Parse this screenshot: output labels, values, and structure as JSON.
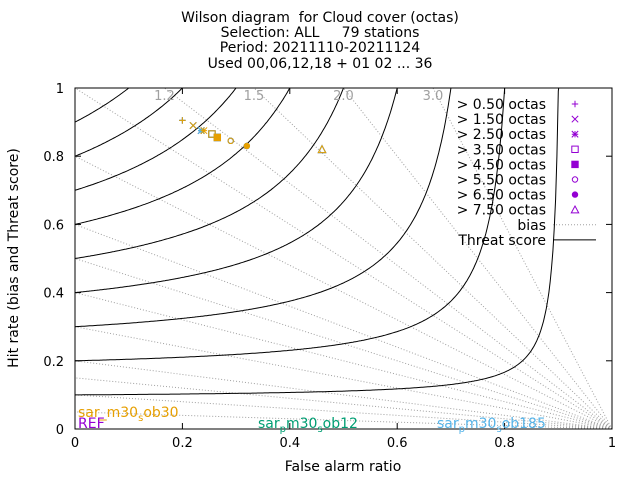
{
  "header": {
    "title_lines": [
      "Wilson diagram  for Cloud cover (octas)",
      "Selection: ALL     79 stations",
      "Period: 20211110-20211124",
      "Used 00,06,12,18 + 01 02 ... 36"
    ]
  },
  "chart_data": {
    "type": "scatter",
    "xlabel": "False alarm ratio",
    "ylabel": "Hit rate (bias and Threat score)",
    "xlim": [
      0,
      1
    ],
    "ylim": [
      0,
      1
    ],
    "xticks": [
      "0",
      "0.2",
      "0.4",
      "0.6",
      "0.8",
      "1"
    ],
    "yticks": [
      "0",
      "0.2",
      "0.4",
      "0.6",
      "0.8",
      "1"
    ],
    "bias_lines": [
      1.2,
      1.5,
      2.0,
      3.0
    ],
    "bias_labels": [
      "1.2",
      "1.5",
      "2.0",
      "3.0"
    ],
    "threat_score_levels": [
      0.1,
      0.2,
      0.3,
      0.4,
      0.5,
      0.6,
      0.7,
      0.8,
      0.9
    ],
    "legend_position": "top-right",
    "legend": {
      "series_entries": [
        {
          "label": "> 0.50 octas",
          "marker": "plus"
        },
        {
          "label": "> 1.50 octas",
          "marker": "cross"
        },
        {
          "label": "> 2.50 octas",
          "marker": "star"
        },
        {
          "label": "> 3.50 octas",
          "marker": "square-open"
        },
        {
          "label": "> 4.50 octas",
          "marker": "square-filled"
        },
        {
          "label": "> 5.50 octas",
          "marker": "circle-open"
        },
        {
          "label": "> 6.50 octas",
          "marker": "circle-filled"
        },
        {
          "label": "> 7.50 octas",
          "marker": "triangle-open"
        }
      ],
      "bias_label": "bias",
      "threat_label": "Threat score"
    },
    "models": [
      {
        "name": "sar_m30_sob30",
        "label_parts": [
          "sar_m30",
          "s",
          "ob30"
        ],
        "color": "#e69f00",
        "points": [
          {
            "threshold": "> 0.50 octas",
            "x": 0.2,
            "y": 0.905
          },
          {
            "threshold": "> 1.50 octas",
            "x": 0.22,
            "y": 0.89
          },
          {
            "threshold": "> 2.50 octas",
            "x": 0.24,
            "y": 0.875
          },
          {
            "threshold": "> 3.50 octas",
            "x": 0.255,
            "y": 0.865
          },
          {
            "threshold": "> 4.50 octas",
            "x": 0.265,
            "y": 0.855
          },
          {
            "threshold": "> 5.50 octas",
            "x": 0.29,
            "y": 0.845
          },
          {
            "threshold": "> 6.50 octas",
            "x": 0.32,
            "y": 0.83
          },
          {
            "threshold": "> 7.50 octas",
            "x": 0.46,
            "y": 0.82
          }
        ]
      },
      {
        "name": "sar_pm30_sob12",
        "label_parts": [
          "sar",
          "p",
          "m30",
          "s",
          "ob12"
        ],
        "color": "#009e73",
        "points": [
          {
            "threshold": "> 0.50 octas",
            "x": 0.2,
            "y": 0.905
          },
          {
            "threshold": "> 1.50 octas",
            "x": 0.22,
            "y": 0.89
          },
          {
            "threshold": "> 2.50 octas",
            "x": 0.235,
            "y": 0.875
          },
          {
            "threshold": "> 3.50 octas",
            "x": 0.255,
            "y": 0.865
          },
          {
            "threshold": "> 4.50 octas",
            "x": 0.265,
            "y": 0.855
          },
          {
            "threshold": "> 5.50 octas",
            "x": 0.29,
            "y": 0.845
          },
          {
            "threshold": "> 6.50 octas",
            "x": 0.32,
            "y": 0.83
          },
          {
            "threshold": "> 7.50 octas",
            "x": 0.46,
            "y": 0.82
          }
        ]
      },
      {
        "name": "sar_pm30_sob185",
        "label_parts": [
          "sar",
          "p",
          "m30",
          "s",
          "ob185"
        ],
        "color": "#56b4e9",
        "points": [
          {
            "threshold": "> 0.50 octas",
            "x": 0.2,
            "y": 0.905
          },
          {
            "threshold": "> 1.50 octas",
            "x": 0.22,
            "y": 0.89
          },
          {
            "threshold": "> 2.50 octas",
            "x": 0.235,
            "y": 0.875
          },
          {
            "threshold": "> 3.50 octas",
            "x": 0.255,
            "y": 0.865
          },
          {
            "threshold": "> 4.50 octas",
            "x": 0.265,
            "y": 0.855
          },
          {
            "threshold": "> 5.50 octas",
            "x": 0.29,
            "y": 0.845
          },
          {
            "threshold": "> 6.50 octas",
            "x": 0.32,
            "y": 0.83
          },
          {
            "threshold": "> 7.50 octas",
            "x": 0.46,
            "y": 0.82
          }
        ]
      },
      {
        "name": "REF",
        "label_parts": [
          "REF"
        ],
        "color": "#9400d3",
        "points": [
          {
            "threshold": "> 0.50 octas",
            "x": 0.2,
            "y": 0.905
          },
          {
            "threshold": "> 1.50 octas",
            "x": 0.22,
            "y": 0.89
          },
          {
            "threshold": "> 2.50 octas",
            "x": 0.235,
            "y": 0.875
          },
          {
            "threshold": "> 3.50 octas",
            "x": 0.255,
            "y": 0.865
          },
          {
            "threshold": "> 4.50 octas",
            "x": 0.265,
            "y": 0.855
          },
          {
            "threshold": "> 5.50 octas",
            "x": 0.29,
            "y": 0.845
          },
          {
            "threshold": "> 6.50 octas",
            "x": 0.32,
            "y": 0.83
          },
          {
            "threshold": "> 7.50 octas",
            "x": 0.46,
            "y": 0.82
          }
        ]
      }
    ]
  },
  "colors": {
    "ref": "#9400d3",
    "grid_bias": "#a0a0a0",
    "threat": "#000000"
  }
}
